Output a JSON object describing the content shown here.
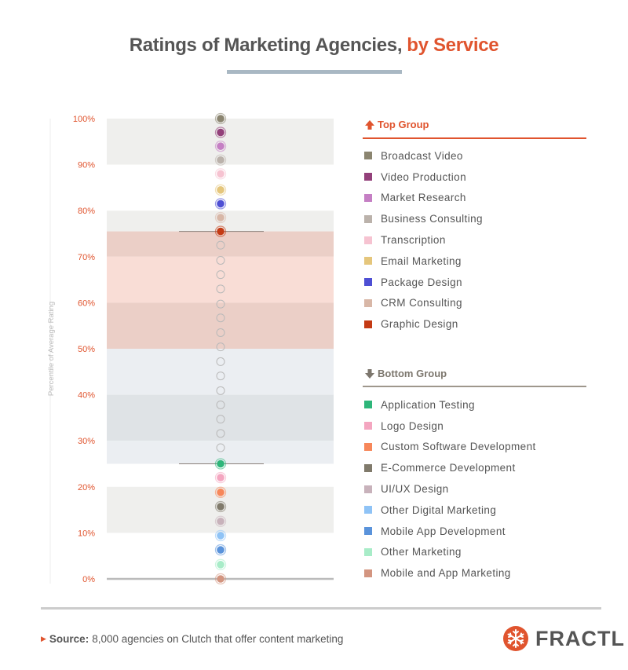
{
  "title": {
    "part1": "Ratings of Marketing Agencies,",
    "part2": "by Service"
  },
  "legend": {
    "top_group": {
      "label": "Top Group",
      "items": [
        {
          "label": "Broadcast Video",
          "color": "#8b8570"
        },
        {
          "label": "Video Production",
          "color": "#93407a"
        },
        {
          "label": "Market Research",
          "color": "#c57fc4"
        },
        {
          "label": "Business Consulting",
          "color": "#bbb2ab"
        },
        {
          "label": "Transcription",
          "color": "#f6c3d1"
        },
        {
          "label": "Email Marketing",
          "color": "#e5c67c"
        },
        {
          "label": "Package Design",
          "color": "#4e4fd4"
        },
        {
          "label": "CRM Consulting",
          "color": "#d8b7a7"
        },
        {
          "label": "Graphic Design",
          "color": "#c43a14"
        }
      ]
    },
    "bottom_group": {
      "label": "Bottom Group",
      "items": [
        {
          "label": "Application Testing",
          "color": "#2eb67a"
        },
        {
          "label": "Logo Design",
          "color": "#f4a6c0"
        },
        {
          "label": "Custom Software Development",
          "color": "#f7875a"
        },
        {
          "label": "E-Commerce Development",
          "color": "#807a6b"
        },
        {
          "label": "UI/UX Design",
          "color": "#c8b2bb"
        },
        {
          "label": "Other Digital Marketing",
          "color": "#8fc3f6"
        },
        {
          "label": "Mobile App Development",
          "color": "#5a93db"
        },
        {
          "label": "Other Marketing",
          "color": "#a8ecc8"
        },
        {
          "label": "Mobile and App Marketing",
          "color": "#d39580"
        }
      ]
    }
  },
  "footer": {
    "source_label": "Source:",
    "source_text": "8,000 agencies on Clutch that offer content marketing",
    "logo_text": "FRACTL"
  },
  "chart_data": {
    "type": "scatter",
    "title": "Ratings of Marketing Agencies, by Service",
    "ylabel": "Percentile of Average Rating",
    "ylim": [
      0,
      100
    ],
    "yticks": [
      0,
      10,
      20,
      30,
      40,
      50,
      60,
      70,
      80,
      90,
      100
    ],
    "ytick_labels": [
      "0%",
      "10%",
      "20%",
      "30%",
      "40%",
      "50%",
      "60%",
      "70%",
      "80%",
      "90%",
      "100%"
    ],
    "top_group_cutoff": 75.5,
    "bottom_group_cutoff": 25,
    "bands": [
      {
        "from": 90,
        "to": 100,
        "color": "#efefed"
      },
      {
        "from": 75.5,
        "to": 80,
        "color": "#efefed"
      },
      {
        "from": 70,
        "to": 75.5,
        "color": "#ebcfc7"
      },
      {
        "from": 60,
        "to": 70,
        "color": "#f9ddd6"
      },
      {
        "from": 50,
        "to": 60,
        "color": "#ebcfc7"
      },
      {
        "from": 40,
        "to": 50,
        "color": "#ebeef2"
      },
      {
        "from": 30,
        "to": 40,
        "color": "#dfe3e6"
      },
      {
        "from": 25,
        "to": 30,
        "color": "#ebeef2"
      },
      {
        "from": 10,
        "to": 20,
        "color": "#efefed"
      }
    ],
    "top_points": [
      {
        "name": "Broadcast Video",
        "value": 100
      },
      {
        "name": "Video Production",
        "value": 97
      },
      {
        "name": "Market Research",
        "value": 94
      },
      {
        "name": "Business Consulting",
        "value": 91
      },
      {
        "name": "Transcription",
        "value": 88
      },
      {
        "name": "Email Marketing",
        "value": 84.5
      },
      {
        "name": "Package Design",
        "value": 81.5
      },
      {
        "name": "CRM Consulting",
        "value": 78.5
      },
      {
        "name": "Graphic Design",
        "value": 75.5
      }
    ],
    "middle_points": [
      72.5,
      69.2,
      66.1,
      63,
      59.7,
      56.7,
      53.5,
      50.4,
      47.2,
      44.1,
      40.9,
      37.8,
      34.7,
      31.6,
      28.5
    ],
    "bottom_points": [
      {
        "name": "Application Testing",
        "value": 25
      },
      {
        "name": "Logo Design",
        "value": 22
      },
      {
        "name": "Custom Software Development",
        "value": 18.8
      },
      {
        "name": "E-Commerce Development",
        "value": 15.7
      },
      {
        "name": "UI/UX Design",
        "value": 12.5
      },
      {
        "name": "Other Digital Marketing",
        "value": 9.4
      },
      {
        "name": "Mobile App Development",
        "value": 6.3
      },
      {
        "name": "Other Marketing",
        "value": 3.1
      },
      {
        "name": "Mobile and App Marketing",
        "value": 0
      }
    ]
  }
}
